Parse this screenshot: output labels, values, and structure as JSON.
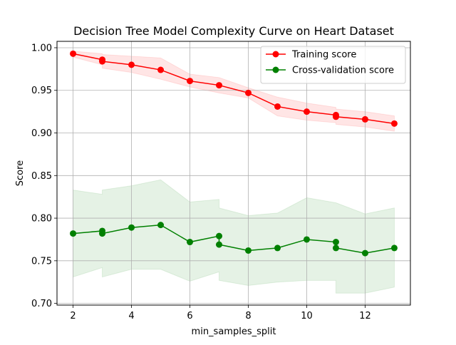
{
  "chart_data": {
    "type": "line",
    "title": "Decision Tree Model Complexity Curve on Heart Dataset",
    "xlabel": "min_samples_split",
    "ylabel": "Score",
    "xlim": [
      1.45,
      13.55
    ],
    "ylim": [
      0.698,
      1.0075
    ],
    "grid": true,
    "legend_position": "top-right",
    "x_ticks": [
      2,
      4,
      6,
      8,
      10,
      12
    ],
    "x_tick_labels": [
      "2",
      "4",
      "6",
      "8",
      "10",
      "12"
    ],
    "y_ticks": [
      0.7,
      0.75,
      0.8,
      0.85,
      0.9,
      0.95,
      1.0
    ],
    "y_tick_labels": [
      "0.70",
      "0.75",
      "0.80",
      "0.85",
      "0.90",
      "0.95",
      "1.00"
    ],
    "series": [
      {
        "name": "Training score",
        "color": "#ff0000",
        "band_color": "#ff0000",
        "x": [
          2,
          3,
          3,
          4,
          5,
          6,
          7,
          8,
          9,
          10,
          11,
          11,
          12,
          13
        ],
        "y": [
          0.993,
          0.986,
          0.984,
          0.98,
          0.974,
          0.961,
          0.956,
          0.947,
          0.931,
          0.925,
          0.921,
          0.919,
          0.916,
          0.911
        ],
        "y_upper": [
          0.996,
          0.993,
          0.992,
          0.99,
          0.988,
          0.969,
          0.965,
          0.953,
          0.942,
          0.935,
          0.93,
          0.928,
          0.925,
          0.92
        ],
        "y_lower": [
          0.989,
          0.98,
          0.976,
          0.971,
          0.963,
          0.954,
          0.947,
          0.941,
          0.92,
          0.915,
          0.912,
          0.91,
          0.907,
          0.902
        ]
      },
      {
        "name": "Cross-validation score",
        "color": "#008000",
        "band_color": "#008000",
        "x": [
          2,
          3,
          3,
          4,
          5,
          6,
          7,
          7,
          8,
          9,
          10,
          11,
          11,
          12,
          13
        ],
        "y": [
          0.782,
          0.785,
          0.782,
          0.789,
          0.792,
          0.772,
          0.779,
          0.769,
          0.762,
          0.765,
          0.775,
          0.772,
          0.765,
          0.759,
          0.765
        ],
        "y_upper": [
          0.833,
          0.828,
          0.833,
          0.838,
          0.845,
          0.819,
          0.822,
          0.812,
          0.803,
          0.806,
          0.824,
          0.818,
          0.818,
          0.805,
          0.812
        ],
        "y_lower": [
          0.731,
          0.742,
          0.731,
          0.74,
          0.74,
          0.726,
          0.737,
          0.727,
          0.721,
          0.725,
          0.727,
          0.727,
          0.712,
          0.712,
          0.719
        ]
      }
    ]
  }
}
